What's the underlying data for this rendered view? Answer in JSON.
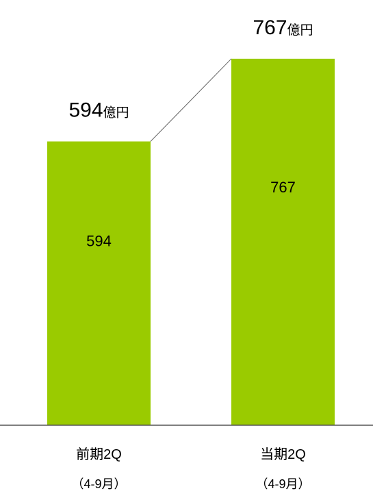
{
  "chart_data": {
    "type": "bar",
    "categories": [
      "前期2Q",
      "当期2Q"
    ],
    "category_sublabels": [
      "（4-9月）",
      "（4-9月）"
    ],
    "values": [
      594,
      767
    ],
    "data_labels": [
      "594",
      "767"
    ],
    "total_labels": [
      "594",
      "767"
    ],
    "unit": "億円",
    "ylim": [
      0,
      890
    ],
    "bar_color": "#9ACB00",
    "connector_line": true,
    "grid": false,
    "legend": "none"
  }
}
